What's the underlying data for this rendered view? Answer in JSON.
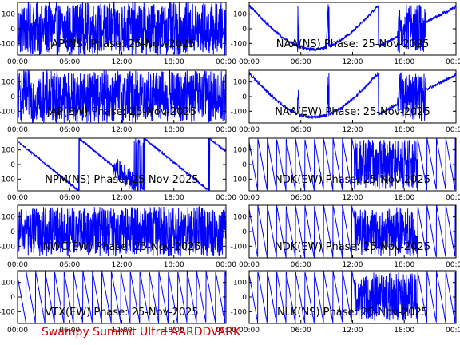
{
  "footer_text": "Swampy Summit Ultra AARDDVARK",
  "colors": {
    "trace": "#0000ff",
    "axes": "#000000",
    "footer": "#cc0000",
    "background": "#ffffff"
  },
  "chart_data": [
    {
      "type": "line",
      "station": "JAP",
      "component": "NS",
      "title": "JAP(NS) Phase: 25-Nov-2025",
      "x_ticks": [
        "00:00",
        "06:00",
        "12:00",
        "18:00",
        "00:00"
      ],
      "y_ticks": [
        100,
        0,
        -100
      ],
      "xlim": [
        0,
        24
      ],
      "ylim": [
        -180,
        180
      ],
      "unit": "hours UTC",
      "pattern": "saturated"
    },
    {
      "type": "line",
      "station": "NAA",
      "component": "NS",
      "title": "NAA(NS) Phase: 25-Nov-2025",
      "x_ticks": [
        "00:00",
        "06:00",
        "12:00",
        "18:00",
        "00:00"
      ],
      "y_ticks": [
        100,
        0,
        -100
      ],
      "xlim": [
        0,
        24
      ],
      "ylim": [
        -180,
        180
      ],
      "unit": "hours UTC",
      "pattern": "drift-bowl"
    },
    {
      "type": "line",
      "station": "JAP",
      "component": "EW",
      "title": "JAP(EW) Phase: 25-Nov-2025",
      "x_ticks": [
        "00:00",
        "06:00",
        "12:00",
        "18:00",
        "00:00"
      ],
      "y_ticks": [
        100,
        0,
        -100
      ],
      "xlim": [
        0,
        24
      ],
      "ylim": [
        -180,
        180
      ],
      "unit": "hours UTC",
      "pattern": "saturated"
    },
    {
      "type": "line",
      "station": "NAA",
      "component": "EW",
      "title": "NAA(EW) Phase: 25-Nov-2025",
      "x_ticks": [
        "00:00",
        "06:00",
        "12:00",
        "18:00",
        "00:00"
      ],
      "y_ticks": [
        100,
        0,
        -100
      ],
      "xlim": [
        0,
        24
      ],
      "ylim": [
        -180,
        180
      ],
      "unit": "hours UTC",
      "pattern": "drift-bowl"
    },
    {
      "type": "line",
      "station": "NPM",
      "component": "NS",
      "title": "NPM(NS) Phase: 25-Nov-2025",
      "x_ticks": [
        "00:00",
        "06:00",
        "12:00",
        "18:00",
        "00:00"
      ],
      "y_ticks": [
        100,
        0,
        -100
      ],
      "xlim": [
        0,
        24
      ],
      "ylim": [
        -180,
        180
      ],
      "unit": "hours UTC",
      "pattern": "slow-sawtooth"
    },
    {
      "type": "line",
      "station": "NDK",
      "component": "EW",
      "title": "NDK(EW) Phase: 25-Nov-2025",
      "x_ticks": [
        "00:00",
        "06:00",
        "12:00",
        "18:00",
        "00:00"
      ],
      "y_ticks": [
        100,
        0,
        -100
      ],
      "xlim": [
        0,
        24
      ],
      "ylim": [
        -180,
        180
      ],
      "unit": "hours UTC",
      "pattern": "sawtooth-with-burst"
    },
    {
      "type": "line",
      "station": "NWC",
      "component": "EW",
      "title": "NWC(EW) Phase: 25-Nov-2025",
      "x_ticks": [
        "00:00",
        "06:00",
        "12:00",
        "18:00",
        "00:00"
      ],
      "y_ticks": [
        100,
        0,
        -100
      ],
      "xlim": [
        0,
        24
      ],
      "ylim": [
        -180,
        180
      ],
      "unit": "hours UTC",
      "pattern": "noisy"
    },
    {
      "type": "line",
      "station": "NDK",
      "component": "EW",
      "title": "NDK(EW) Phase: 25-Nov-2025",
      "x_ticks": [
        "00:00",
        "06:00",
        "12:00",
        "18:00",
        "00:00"
      ],
      "y_ticks": [
        100,
        0,
        -100
      ],
      "xlim": [
        0,
        24
      ],
      "ylim": [
        -180,
        180
      ],
      "unit": "hours UTC",
      "pattern": "sawtooth-with-burst"
    },
    {
      "type": "line",
      "station": "VTX",
      "component": "EW",
      "title": "VTX(EW) Phase: 25-Nov-2025",
      "x_ticks": [
        "00:00",
        "06:00",
        "12:00",
        "18:00",
        "00:00"
      ],
      "y_ticks": [
        100,
        0,
        -100
      ],
      "xlim": [
        0,
        24
      ],
      "ylim": [
        -180,
        180
      ],
      "unit": "hours UTC",
      "pattern": "sawtooth"
    },
    {
      "type": "line",
      "station": "NLK",
      "component": "NS",
      "title": "NLK(NS) Phase: 25-Nov-2025",
      "x_ticks": [
        "00:00",
        "06:00",
        "12:00",
        "18:00",
        "00:00"
      ],
      "y_ticks": [
        100,
        0,
        -100
      ],
      "xlim": [
        0,
        24
      ],
      "ylim": [
        -180,
        180
      ],
      "unit": "hours UTC",
      "pattern": "sawtooth-with-burst"
    }
  ]
}
